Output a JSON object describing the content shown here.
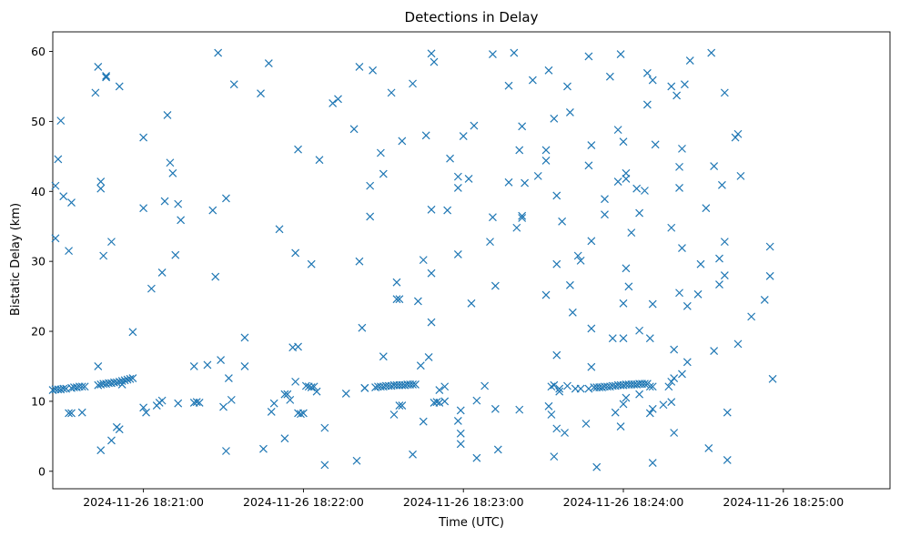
{
  "chart_data": {
    "type": "scatter",
    "title": "Detections in Delay",
    "xlabel": "Time (UTC)",
    "ylabel": "Bistatic Delay (km)",
    "marker": "x",
    "color": "#1f77b4",
    "grid": false,
    "x_ticks": [
      {
        "t": "18:21:00",
        "label": "2024-11-26 18:21:00"
      },
      {
        "t": "18:22:00",
        "label": "2024-11-26 18:22:00"
      },
      {
        "t": "18:23:00",
        "label": "2024-11-26 18:23:00"
      },
      {
        "t": "18:24:00",
        "label": "2024-11-26 18:24:00"
      },
      {
        "t": "18:25:00",
        "label": "2024-11-26 18:25:00"
      }
    ],
    "xlim": [
      "18:20:26",
      "18:25:40"
    ],
    "ylim": [
      -2.5,
      62.8
    ],
    "y_ticks": [
      0,
      10,
      20,
      30,
      40,
      50,
      60
    ],
    "points": [
      [
        "18:20:26",
        11.6
      ],
      [
        "18:20:27",
        11.7
      ],
      [
        "18:20:28",
        11.7
      ],
      [
        "18:20:29",
        11.7
      ],
      [
        "18:20:30",
        11.8
      ],
      [
        "18:20:31",
        11.8
      ],
      [
        "18:20:33",
        11.9
      ],
      [
        "18:20:34",
        12.0
      ],
      [
        "18:20:35",
        12.0
      ],
      [
        "18:20:36",
        12.1
      ],
      [
        "18:20:37",
        12.1
      ],
      [
        "18:20:38",
        12.1
      ],
      [
        "18:20:43",
        12.3
      ],
      [
        "18:20:44",
        12.4
      ],
      [
        "18:20:45",
        12.5
      ],
      [
        "18:20:46",
        12.5
      ],
      [
        "18:20:47",
        12.6
      ],
      [
        "18:20:48",
        12.6
      ],
      [
        "18:20:49",
        12.7
      ],
      [
        "18:20:50",
        12.7
      ],
      [
        "18:20:51",
        12.8
      ],
      [
        "18:20:52",
        12.9
      ],
      [
        "18:20:53",
        13.0
      ],
      [
        "18:20:54",
        13.1
      ],
      [
        "18:20:55",
        13.2
      ],
      [
        "18:20:56",
        13.3
      ],
      [
        "18:20:52",
        12.4
      ],
      [
        "18:20:27",
        33.3
      ],
      [
        "18:20:27",
        40.8
      ],
      [
        "18:20:28",
        44.6
      ],
      [
        "18:20:29",
        50.1
      ],
      [
        "18:20:30",
        39.3
      ],
      [
        "18:20:32",
        31.5
      ],
      [
        "18:20:33",
        38.4
      ],
      [
        "18:20:32",
        8.3
      ],
      [
        "18:20:33",
        8.3
      ],
      [
        "18:20:37",
        8.4
      ],
      [
        "18:20:42",
        54.1
      ],
      [
        "18:20:43",
        57.8
      ],
      [
        "18:20:44",
        3.0
      ],
      [
        "18:20:44",
        41.4
      ],
      [
        "18:20:44",
        40.4
      ],
      [
        "18:20:45",
        30.8
      ],
      [
        "18:20:46",
        56.5
      ],
      [
        "18:20:46",
        56.3
      ],
      [
        "18:20:48",
        32.8
      ],
      [
        "18:20:48",
        4.4
      ],
      [
        "18:20:50",
        6.3
      ],
      [
        "18:20:51",
        6.0
      ],
      [
        "18:20:51",
        55.0
      ],
      [
        "18:20:43",
        15.0
      ],
      [
        "18:20:56",
        19.9
      ],
      [
        "18:21:00",
        37.6
      ],
      [
        "18:21:00",
        47.7
      ],
      [
        "18:21:00",
        9.1
      ],
      [
        "18:21:01",
        8.4
      ],
      [
        "18:21:03",
        26.1
      ],
      [
        "18:21:05",
        9.4
      ],
      [
        "18:21:06",
        9.8
      ],
      [
        "18:21:07",
        28.4
      ],
      [
        "18:21:07",
        10.1
      ],
      [
        "18:21:08",
        38.6
      ],
      [
        "18:21:09",
        50.9
      ],
      [
        "18:21:10",
        44.1
      ],
      [
        "18:21:11",
        42.6
      ],
      [
        "18:21:12",
        30.9
      ],
      [
        "18:21:13",
        38.2
      ],
      [
        "18:21:13",
        9.7
      ],
      [
        "18:21:14",
        35.9
      ],
      [
        "18:21:19",
        9.8
      ],
      [
        "18:21:20",
        9.9
      ],
      [
        "18:21:21",
        9.8
      ],
      [
        "18:21:19",
        15.0
      ],
      [
        "18:21:24",
        15.2
      ],
      [
        "18:21:26",
        37.3
      ],
      [
        "18:21:27",
        27.8
      ],
      [
        "18:21:28",
        59.8
      ],
      [
        "18:21:29",
        15.9
      ],
      [
        "18:21:30",
        9.2
      ],
      [
        "18:21:31",
        39.0
      ],
      [
        "18:21:31",
        2.9
      ],
      [
        "18:21:32",
        13.3
      ],
      [
        "18:21:33",
        10.2
      ],
      [
        "18:21:34",
        55.3
      ],
      [
        "18:21:38",
        15.0
      ],
      [
        "18:21:38",
        19.1
      ],
      [
        "18:21:44",
        54.0
      ],
      [
        "18:21:45",
        3.2
      ],
      [
        "18:21:47",
        58.3
      ],
      [
        "18:21:48",
        8.5
      ],
      [
        "18:21:49",
        9.7
      ],
      [
        "18:21:51",
        34.6
      ],
      [
        "18:21:53",
        4.7
      ],
      [
        "18:21:53",
        11.0
      ],
      [
        "18:21:54",
        11.0
      ],
      [
        "18:21:55",
        10.2
      ],
      [
        "18:21:56",
        17.7
      ],
      [
        "18:21:58",
        17.8
      ],
      [
        "18:21:57",
        12.8
      ],
      [
        "18:21:57",
        31.2
      ],
      [
        "18:21:58",
        46.0
      ],
      [
        "18:21:58",
        8.3
      ],
      [
        "18:21:59",
        8.2
      ],
      [
        "18:22:00",
        8.3
      ],
      [
        "18:22:01",
        12.2
      ],
      [
        "18:22:02",
        12.1
      ],
      [
        "18:22:03",
        12.0
      ],
      [
        "18:22:04",
        12.1
      ],
      [
        "18:22:03",
        29.6
      ],
      [
        "18:22:05",
        11.4
      ],
      [
        "18:22:06",
        44.5
      ],
      [
        "18:22:08",
        0.9
      ],
      [
        "18:22:08",
        6.2
      ],
      [
        "18:22:11",
        52.6
      ],
      [
        "18:22:13",
        53.2
      ],
      [
        "18:22:16",
        11.1
      ],
      [
        "18:22:19",
        48.9
      ],
      [
        "18:22:20",
        1.5
      ],
      [
        "18:22:21",
        57.8
      ],
      [
        "18:22:21",
        30.0
      ],
      [
        "18:22:22",
        20.5
      ],
      [
        "18:22:23",
        11.9
      ],
      [
        "18:22:23",
        11.9
      ],
      [
        "18:22:25",
        36.4
      ],
      [
        "18:22:25",
        40.8
      ],
      [
        "18:22:26",
        57.3
      ],
      [
        "18:22:27",
        12.0
      ],
      [
        "18:22:28",
        12.1
      ],
      [
        "18:22:29",
        12.1
      ],
      [
        "18:22:30",
        12.1
      ],
      [
        "18:22:31",
        12.2
      ],
      [
        "18:22:32",
        12.2
      ],
      [
        "18:22:33",
        12.2
      ],
      [
        "18:22:34",
        12.3
      ],
      [
        "18:22:35",
        12.3
      ],
      [
        "18:22:36",
        12.3
      ],
      [
        "18:22:37",
        12.3
      ],
      [
        "18:22:38",
        12.3
      ],
      [
        "18:22:39",
        12.4
      ],
      [
        "18:22:40",
        12.4
      ],
      [
        "18:22:41",
        12.4
      ],
      [
        "18:22:42",
        12.4
      ],
      [
        "18:22:29",
        45.5
      ],
      [
        "18:22:30",
        42.5
      ],
      [
        "18:22:30",
        16.4
      ],
      [
        "18:22:33",
        54.1
      ],
      [
        "18:22:34",
        8.1
      ],
      [
        "18:22:35",
        27.0
      ],
      [
        "18:22:35",
        24.6
      ],
      [
        "18:22:36",
        24.6
      ],
      [
        "18:22:36",
        9.4
      ],
      [
        "18:22:37",
        9.4
      ],
      [
        "18:22:37",
        47.2
      ],
      [
        "18:22:41",
        55.4
      ],
      [
        "18:22:41",
        2.4
      ],
      [
        "18:22:43",
        24.3
      ],
      [
        "18:22:44",
        15.1
      ],
      [
        "18:22:45",
        30.2
      ],
      [
        "18:22:45",
        7.1
      ],
      [
        "18:22:46",
        48.0
      ],
      [
        "18:22:47",
        16.3
      ],
      [
        "18:22:48",
        59.7
      ],
      [
        "18:22:48",
        37.4
      ],
      [
        "18:22:48",
        21.3
      ],
      [
        "18:22:48",
        28.3
      ],
      [
        "18:22:49",
        58.5
      ],
      [
        "18:22:49",
        9.8
      ],
      [
        "18:22:50",
        9.9
      ],
      [
        "18:22:51",
        9.8
      ],
      [
        "18:22:51",
        11.6
      ],
      [
        "18:22:53",
        12.1
      ],
      [
        "18:22:53",
        10.0
      ],
      [
        "18:22:54",
        37.3
      ],
      [
        "18:22:55",
        44.7
      ],
      [
        "18:22:58",
        42.1
      ],
      [
        "18:22:58",
        31.0
      ],
      [
        "18:22:58",
        40.5
      ],
      [
        "18:22:58",
        7.2
      ],
      [
        "18:22:59",
        5.4
      ],
      [
        "18:22:59",
        3.9
      ],
      [
        "18:22:59",
        8.7
      ],
      [
        "18:23:00",
        47.9
      ],
      [
        "18:23:02",
        41.8
      ],
      [
        "18:23:03",
        24.0
      ],
      [
        "18:23:04",
        49.4
      ],
      [
        "18:23:05",
        10.1
      ],
      [
        "18:23:05",
        1.9
      ],
      [
        "18:23:08",
        12.2
      ],
      [
        "18:23:10",
        32.8
      ],
      [
        "18:23:11",
        36.3
      ],
      [
        "18:23:11",
        59.6
      ],
      [
        "18:23:12",
        8.9
      ],
      [
        "18:23:12",
        26.5
      ],
      [
        "18:23:13",
        3.1
      ],
      [
        "18:23:17",
        41.3
      ],
      [
        "18:23:17",
        55.1
      ],
      [
        "18:23:19",
        59.8
      ],
      [
        "18:23:20",
        34.8
      ],
      [
        "18:23:21",
        8.8
      ],
      [
        "18:23:21",
        45.9
      ],
      [
        "18:23:22",
        49.3
      ],
      [
        "18:23:22",
        36.5
      ],
      [
        "18:23:22",
        36.2
      ],
      [
        "18:23:23",
        41.2
      ],
      [
        "18:23:26",
        55.9
      ],
      [
        "18:23:28",
        42.2
      ],
      [
        "18:23:31",
        25.2
      ],
      [
        "18:23:31",
        45.9
      ],
      [
        "18:23:31",
        44.4
      ],
      [
        "18:23:32",
        9.3
      ],
      [
        "18:23:32",
        57.3
      ],
      [
        "18:23:33",
        8.1
      ],
      [
        "18:23:33",
        12.1
      ],
      [
        "18:23:34",
        2.1
      ],
      [
        "18:23:34",
        12.3
      ],
      [
        "18:23:34",
        50.4
      ],
      [
        "18:23:35",
        6.1
      ],
      [
        "18:23:35",
        29.6
      ],
      [
        "18:23:35",
        39.4
      ],
      [
        "18:23:36",
        11.4
      ],
      [
        "18:23:36",
        11.8
      ],
      [
        "18:23:35",
        16.6
      ],
      [
        "18:23:37",
        35.7
      ],
      [
        "18:23:38",
        5.5
      ],
      [
        "18:23:39",
        12.2
      ],
      [
        "18:23:39",
        55.0
      ],
      [
        "18:23:40",
        26.6
      ],
      [
        "18:23:40",
        51.3
      ],
      [
        "18:23:41",
        22.7
      ],
      [
        "18:23:42",
        11.8
      ],
      [
        "18:23:43",
        30.8
      ],
      [
        "18:23:44",
        11.8
      ],
      [
        "18:23:44",
        30.1
      ],
      [
        "18:23:46",
        6.8
      ],
      [
        "18:23:47",
        11.8
      ],
      [
        "18:23:47",
        43.7
      ],
      [
        "18:23:48",
        46.6
      ],
      [
        "18:23:47",
        59.3
      ],
      [
        "18:23:48",
        20.4
      ],
      [
        "18:23:48",
        32.9
      ],
      [
        "18:23:48",
        14.9
      ],
      [
        "18:23:49",
        12.0
      ],
      [
        "18:23:50",
        0.6
      ],
      [
        "18:23:50",
        12.0
      ],
      [
        "18:23:51",
        12.0
      ],
      [
        "18:23:52",
        12.0
      ],
      [
        "18:23:53",
        12.1
      ],
      [
        "18:23:53",
        36.7
      ],
      [
        "18:23:53",
        38.9
      ],
      [
        "18:23:54",
        12.1
      ],
      [
        "18:23:55",
        12.1
      ],
      [
        "18:23:55",
        56.4
      ],
      [
        "18:23:56",
        12.2
      ],
      [
        "18:23:56",
        19.0
      ],
      [
        "18:23:57",
        12.2
      ],
      [
        "18:23:57",
        8.4
      ],
      [
        "18:23:58",
        12.3
      ],
      [
        "18:23:58",
        41.4
      ],
      [
        "18:23:58",
        48.8
      ],
      [
        "18:23:59",
        12.3
      ],
      [
        "18:23:59",
        6.4
      ],
      [
        "18:23:59",
        59.6
      ],
      [
        "18:24:00",
        12.3
      ],
      [
        "18:24:00",
        9.6
      ],
      [
        "18:24:00",
        19.0
      ],
      [
        "18:24:00",
        47.1
      ],
      [
        "18:24:00",
        24.0
      ],
      [
        "18:24:01",
        12.4
      ],
      [
        "18:24:01",
        41.8
      ],
      [
        "18:24:01",
        42.6
      ],
      [
        "18:24:01",
        29.0
      ],
      [
        "18:24:01",
        10.5
      ],
      [
        "18:24:02",
        12.4
      ],
      [
        "18:24:02",
        26.4
      ],
      [
        "18:24:03",
        12.4
      ],
      [
        "18:24:03",
        34.1
      ],
      [
        "18:24:04",
        12.4
      ],
      [
        "18:24:05",
        12.4
      ],
      [
        "18:24:05",
        40.4
      ],
      [
        "18:24:06",
        12.5
      ],
      [
        "18:24:06",
        11.0
      ],
      [
        "18:24:06",
        20.1
      ],
      [
        "18:24:06",
        36.9
      ],
      [
        "18:24:07",
        12.5
      ],
      [
        "18:24:08",
        12.5
      ],
      [
        "18:24:08",
        40.1
      ],
      [
        "18:24:09",
        12.5
      ],
      [
        "18:24:09",
        52.4
      ],
      [
        "18:24:09",
        56.9
      ],
      [
        "18:24:10",
        12.1
      ],
      [
        "18:24:10",
        8.3
      ],
      [
        "18:24:10",
        19.0
      ],
      [
        "18:24:11",
        12.1
      ],
      [
        "18:24:11",
        8.9
      ],
      [
        "18:24:11",
        55.9
      ],
      [
        "18:24:11",
        23.9
      ],
      [
        "18:24:11",
        1.2
      ],
      [
        "18:24:12",
        46.7
      ],
      [
        "18:24:15",
        9.5
      ],
      [
        "18:24:17",
        12.1
      ],
      [
        "18:24:18",
        12.8
      ],
      [
        "18:24:18",
        34.8
      ],
      [
        "18:24:18",
        55.0
      ],
      [
        "18:24:18",
        9.9
      ],
      [
        "18:24:19",
        17.4
      ],
      [
        "18:24:19",
        13.3
      ],
      [
        "18:24:19",
        5.5
      ],
      [
        "18:24:20",
        53.7
      ],
      [
        "18:24:21",
        43.5
      ],
      [
        "18:24:21",
        40.5
      ],
      [
        "18:24:21",
        25.5
      ],
      [
        "18:24:22",
        31.9
      ],
      [
        "18:24:22",
        46.1
      ],
      [
        "18:24:22",
        13.9
      ],
      [
        "18:24:23",
        55.3
      ],
      [
        "18:24:24",
        15.6
      ],
      [
        "18:24:24",
        23.6
      ],
      [
        "18:24:25",
        58.7
      ],
      [
        "18:24:28",
        25.3
      ],
      [
        "18:24:29",
        29.6
      ],
      [
        "18:24:31",
        37.6
      ],
      [
        "18:24:32",
        3.3
      ],
      [
        "18:24:33",
        59.8
      ],
      [
        "18:24:34",
        43.6
      ],
      [
        "18:24:34",
        17.2
      ],
      [
        "18:24:36",
        30.4
      ],
      [
        "18:24:36",
        26.7
      ],
      [
        "18:24:37",
        40.9
      ],
      [
        "18:24:38",
        32.8
      ],
      [
        "18:24:38",
        28.0
      ],
      [
        "18:24:38",
        54.1
      ],
      [
        "18:24:39",
        8.4
      ],
      [
        "18:24:39",
        1.6
      ],
      [
        "18:24:42",
        47.7
      ],
      [
        "18:24:43",
        48.2
      ],
      [
        "18:24:43",
        18.2
      ],
      [
        "18:24:44",
        42.2
      ],
      [
        "18:24:48",
        22.1
      ],
      [
        "18:24:53",
        24.5
      ],
      [
        "18:24:55",
        32.1
      ],
      [
        "18:24:55",
        27.9
      ],
      [
        "18:24:56",
        13.2
      ]
    ]
  }
}
